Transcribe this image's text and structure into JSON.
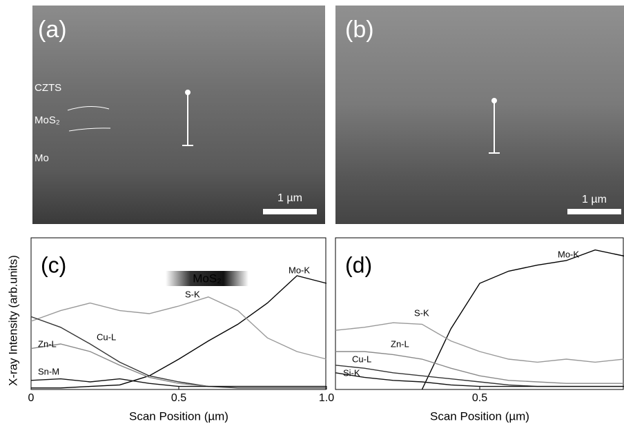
{
  "images": [
    {
      "label": "(a)",
      "layers": [
        "CZTS",
        "MoS₂",
        "Mo"
      ],
      "scale_bar": "1 µm"
    },
    {
      "label": "(b)",
      "scale_bar": "1 µm"
    }
  ],
  "y_label": "X-ray Intensity (arb.units)",
  "chart_data": [
    {
      "type": "line",
      "label": "(c)",
      "annotation": "MoS₂",
      "x_label": "Scan Position (µm)",
      "x": [
        0,
        0.1,
        0.2,
        0.3,
        0.4,
        0.5,
        0.6,
        0.7,
        0.8,
        0.9,
        1.0
      ],
      "xlim": [
        0,
        1
      ],
      "xticks": [
        0,
        0.5,
        {
          "value": 1,
          "label": "1.0"
        }
      ],
      "ylim": [
        0,
        100
      ],
      "series": [
        {
          "name": "Mo-K",
          "color": "#000000",
          "values": [
            1,
            1,
            2,
            3,
            9,
            20,
            32,
            43,
            57,
            75,
            70
          ]
        },
        {
          "name": "S-K",
          "color": "#999999",
          "values": [
            45,
            52,
            57,
            52,
            50,
            55,
            61,
            52,
            34,
            25,
            20
          ]
        },
        {
          "name": "Cu-L",
          "color": "#333333",
          "values": [
            48,
            41,
            30,
            18,
            9,
            5,
            2,
            1,
            1,
            1,
            1
          ]
        },
        {
          "name": "Zn-L",
          "color": "#8a8a8a",
          "values": [
            27,
            30,
            25,
            16,
            8,
            4,
            2,
            2,
            2,
            2,
            2
          ]
        },
        {
          "name": "Sn-M",
          "color": "#111111",
          "values": [
            6,
            7,
            5,
            7,
            4,
            2,
            2,
            2,
            2,
            2,
            2
          ]
        }
      ]
    },
    {
      "type": "line",
      "label": "(d)",
      "x_label": "Scan Position (µm)",
      "x": [
        0,
        0.1,
        0.2,
        0.3,
        0.4,
        0.5,
        0.6,
        0.7,
        0.8,
        0.9,
        1.0
      ],
      "xlim": [
        0,
        1
      ],
      "xticks": [
        0.5
      ],
      "ylim": [
        0,
        100
      ],
      "series": [
        {
          "name": "Mo-K",
          "color": "#000000",
          "values": [
            null,
            null,
            null,
            0,
            40,
            70,
            78,
            82,
            85,
            92,
            88
          ]
        },
        {
          "name": "S-K",
          "color": "#999999",
          "values": [
            39,
            41,
            44,
            43,
            32,
            25,
            20,
            18,
            20,
            18,
            20
          ]
        },
        {
          "name": "Zn-L",
          "color": "#8a8a8a",
          "values": [
            25,
            25,
            23,
            20,
            14,
            9,
            6,
            5,
            4,
            4,
            4
          ]
        },
        {
          "name": "Cu-L",
          "color": "#333333",
          "values": [
            16,
            14,
            11,
            9,
            7,
            5,
            3,
            2,
            2,
            2,
            2
          ]
        },
        {
          "name": "Si-K",
          "color": "#111111",
          "values": [
            11,
            8,
            6,
            5,
            3,
            2,
            2,
            2,
            2,
            2,
            2
          ]
        }
      ]
    }
  ]
}
